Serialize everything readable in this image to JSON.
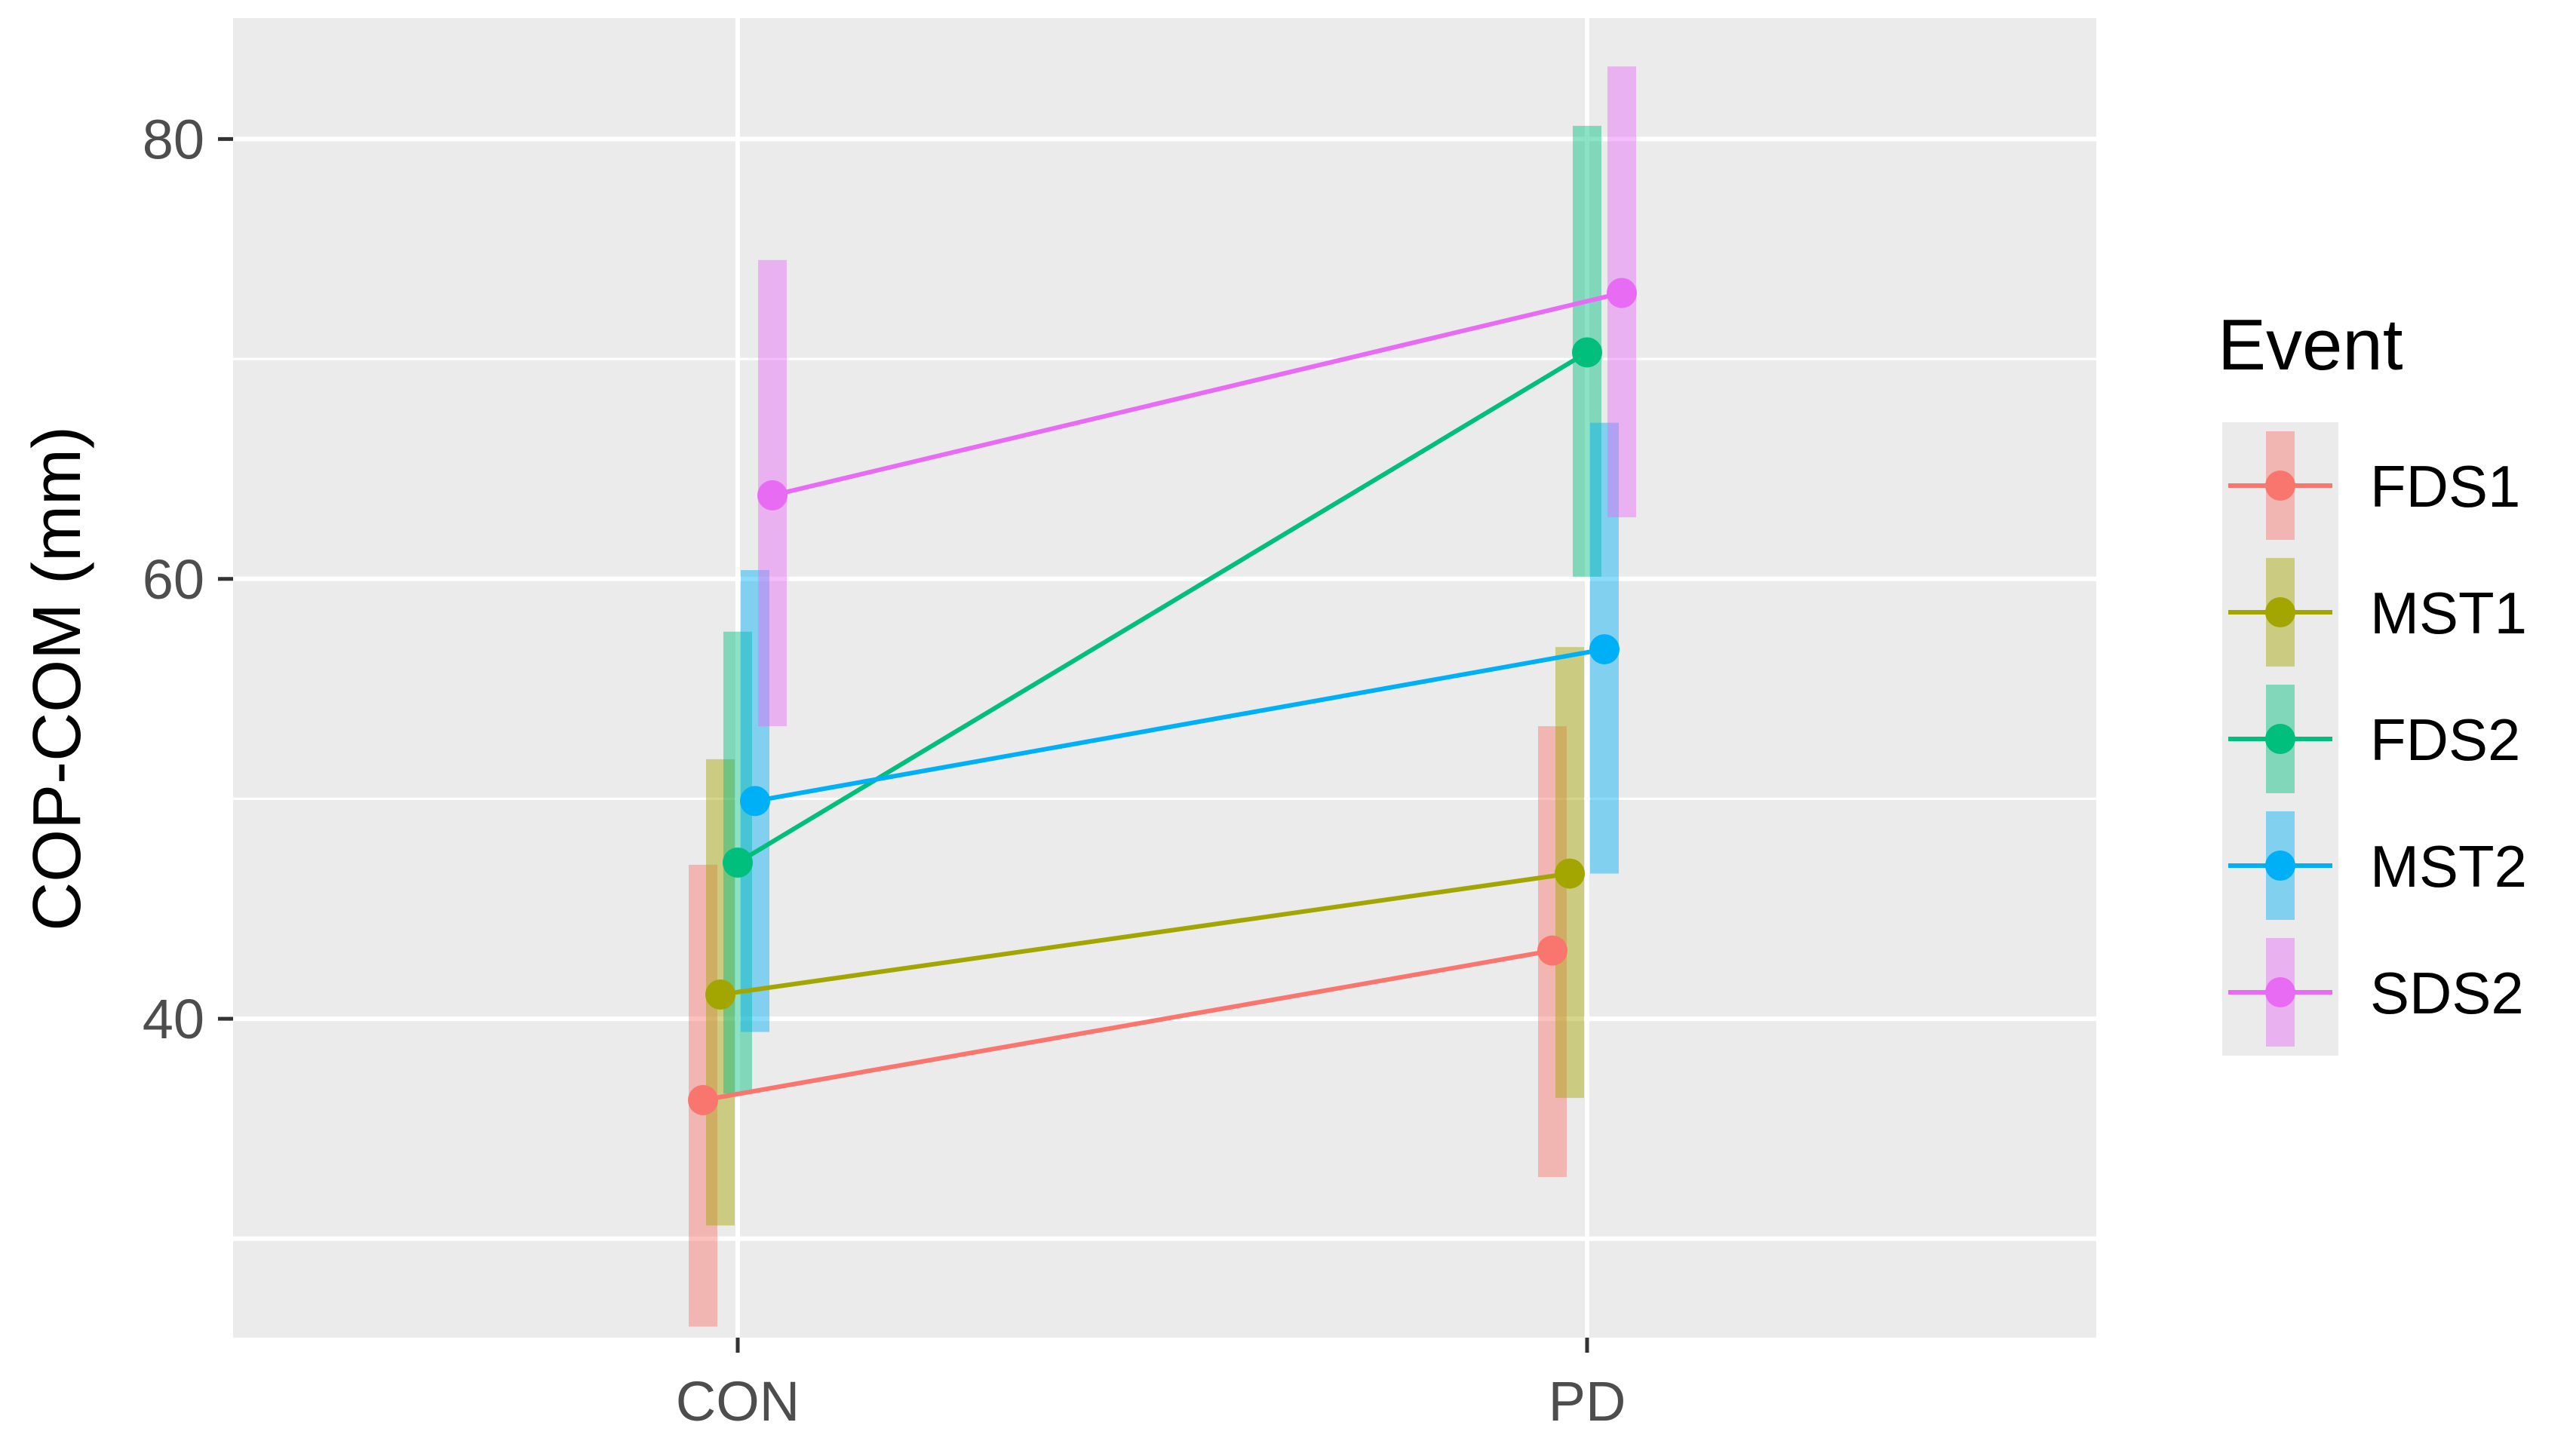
{
  "chart_data": {
    "type": "line",
    "categories": [
      "CON",
      "PD"
    ],
    "ylabel": "COP-COM (mm)",
    "xlabel": "",
    "ylim": [
      25.5,
      85.5
    ],
    "yticks": [
      40,
      60,
      80
    ],
    "grid": true,
    "legend": {
      "title": "Event",
      "placement": "right"
    },
    "error_bars": true,
    "series": [
      {
        "name": "FDS1",
        "color": "#F8766D",
        "values": [
          36.3,
          43.1
        ],
        "lower": [
          26.0,
          32.8
        ],
        "upper": [
          47.0,
          53.3
        ]
      },
      {
        "name": "MST1",
        "color": "#A3A500",
        "values": [
          41.1,
          46.6
        ],
        "lower": [
          30.6,
          36.4
        ],
        "upper": [
          51.8,
          56.9
        ]
      },
      {
        "name": "FDS2",
        "color": "#00BF7D",
        "values": [
          47.1,
          70.3
        ],
        "lower": [
          36.6,
          60.1
        ],
        "upper": [
          57.6,
          80.6
        ]
      },
      {
        "name": "MST2",
        "color": "#00B0F6",
        "values": [
          49.9,
          56.8
        ],
        "lower": [
          39.4,
          46.6
        ],
        "upper": [
          60.4,
          67.1
        ]
      },
      {
        "name": "SDS2",
        "color": "#E76BF3",
        "values": [
          63.8,
          73.0
        ],
        "lower": [
          53.3,
          62.8
        ],
        "upper": [
          74.5,
          83.3
        ]
      }
    ]
  }
}
